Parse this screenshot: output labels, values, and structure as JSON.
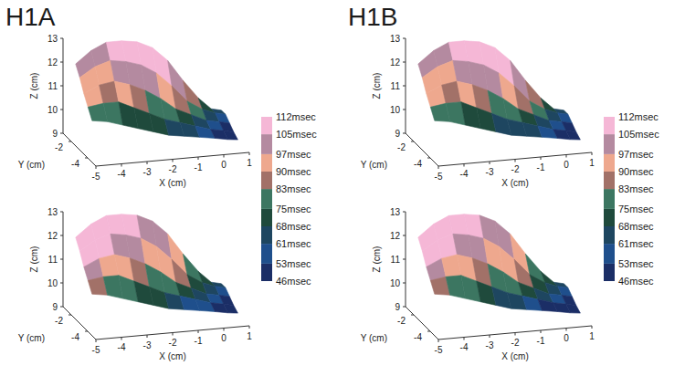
{
  "chart_data": [
    {
      "type": "surface3d",
      "title": "H1A",
      "xlabel": "X (cm)",
      "ylabel": "Y (cm)",
      "zlabel": "Z (cm)",
      "xlim": [
        -5,
        1
      ],
      "ylim": [
        -5,
        -1
      ],
      "zlim": [
        9,
        13
      ],
      "xticks": [
        -5,
        -4,
        -3,
        -2,
        -1,
        0,
        1
      ],
      "yticks": [
        -4,
        -2
      ],
      "zticks": [
        9,
        10,
        11,
        12,
        13
      ],
      "times": [
        [
          98,
          100,
          106,
          110,
          109,
          106,
          100,
          88,
          72,
          64
        ],
        [
          95,
          95,
          99,
          104,
          100,
          93,
          86,
          76,
          66,
          58
        ],
        [
          92,
          88,
          90,
          86,
          80,
          75,
          70,
          65,
          60,
          52
        ],
        [
          80,
          76,
          74,
          72,
          68,
          64,
          62,
          58,
          52,
          48
        ]
      ]
    },
    {
      "type": "surface3d",
      "xlabel": "X (cm)",
      "ylabel": "Y (cm)",
      "zlabel": "Z (cm)",
      "xlim": [
        -5,
        1
      ],
      "ylim": [
        -5,
        -1
      ],
      "zlim": [
        9,
        13
      ],
      "xticks": [
        -5,
        -4,
        -3,
        -2,
        -1,
        0,
        1
      ],
      "yticks": [
        -4,
        -2
      ],
      "zticks": [
        9,
        10,
        11,
        12,
        13
      ],
      "times": [
        [
          110,
          110,
          109,
          108,
          104,
          98,
          92,
          82,
          70,
          62
        ],
        [
          108,
          107,
          104,
          100,
          96,
          90,
          84,
          74,
          64,
          56
        ],
        [
          100,
          96,
          93,
          88,
          82,
          76,
          70,
          63,
          57,
          50
        ],
        [
          88,
          82,
          78,
          73,
          68,
          63,
          58,
          53,
          49,
          47
        ]
      ]
    },
    {
      "type": "surface3d",
      "title": "H1B",
      "xlabel": "X (cm)",
      "ylabel": "Y (cm)",
      "zlabel": "Z (cm)",
      "xlim": [
        -5,
        1
      ],
      "ylim": [
        -5,
        -1
      ],
      "zlim": [
        9,
        13
      ],
      "xticks": [
        -5,
        -4,
        -3,
        -2,
        -1,
        0,
        1
      ],
      "yticks": [
        -4,
        -2
      ],
      "zticks": [
        9,
        10,
        11,
        12,
        13
      ],
      "times": [
        [
          98,
          101,
          106,
          110,
          109,
          105,
          100,
          87,
          72,
          63
        ],
        [
          95,
          94,
          99,
          103,
          100,
          92,
          86,
          75,
          65,
          57
        ],
        [
          92,
          89,
          90,
          86,
          80,
          75,
          70,
          65,
          60,
          52
        ],
        [
          81,
          76,
          73,
          72,
          67,
          64,
          61,
          57,
          51,
          48
        ]
      ]
    },
    {
      "type": "surface3d",
      "xlabel": "X (cm)",
      "ylabel": "Y (cm)",
      "zlabel": "Z (cm)",
      "xlim": [
        -5,
        1
      ],
      "ylim": [
        -5,
        -1
      ],
      "zlim": [
        9,
        13
      ],
      "xticks": [
        -5,
        -4,
        -3,
        -2,
        -1,
        0,
        1
      ],
      "yticks": [
        -4,
        -2
      ],
      "zticks": [
        9,
        10,
        11,
        12,
        13
      ],
      "times": [
        [
          110,
          109,
          109,
          107,
          104,
          98,
          91,
          82,
          70,
          61
        ],
        [
          108,
          106,
          104,
          99,
          95,
          90,
          83,
          73,
          63,
          55
        ],
        [
          100,
          95,
          92,
          88,
          81,
          76,
          69,
          62,
          56,
          50
        ],
        [
          87,
          82,
          77,
          73,
          67,
          62,
          58,
          52,
          49,
          47
        ]
      ]
    }
  ],
  "surface": {
    "x": [
      -4.7,
      -4.1,
      -3.5,
      -2.9,
      -2.3,
      -1.7,
      -1.1,
      -0.5,
      0.1,
      0.6,
      1.0
    ],
    "y": [
      -1.6,
      -2.1,
      -2.6,
      -3.1,
      -3.6
    ],
    "z": [
      [
        12.1,
        12.6,
        12.9,
        12.9,
        12.8,
        12.5,
        11.9,
        11.0,
        10.2,
        9.7,
        9.6
      ],
      [
        11.7,
        12.1,
        12.3,
        12.2,
        12.0,
        11.6,
        11.0,
        10.3,
        9.9,
        9.7,
        9.6
      ],
      [
        11.2,
        11.5,
        11.6,
        11.4,
        11.1,
        10.7,
        10.2,
        9.9,
        9.6,
        9.5,
        9.4
      ],
      [
        10.8,
        10.9,
        10.9,
        10.6,
        10.3,
        10.0,
        9.8,
        9.6,
        9.4,
        9.3,
        9.2
      ],
      [
        10.4,
        10.3,
        10.1,
        9.9,
        9.7,
        9.5,
        9.4,
        9.3,
        9.2,
        9.1,
        9.05
      ]
    ]
  },
  "colorbar": {
    "ticks": [
      {
        "value": 46,
        "label": "46msec"
      },
      {
        "value": 53,
        "label": "53msec"
      },
      {
        "value": 61,
        "label": "61msec"
      },
      {
        "value": 68,
        "label": "68msec"
      },
      {
        "value": 75,
        "label": "75msec"
      },
      {
        "value": 83,
        "label": "83msec"
      },
      {
        "value": 90,
        "label": "90msec"
      },
      {
        "value": 97,
        "label": "97msec"
      },
      {
        "value": 105,
        "label": "105msec"
      },
      {
        "value": 112,
        "label": "112msec"
      }
    ],
    "colors": [
      "#1b2e66",
      "#1f4f8c",
      "#1e4660",
      "#1f4a3c",
      "#3c7661",
      "#a27168",
      "#eea88e",
      "#b48aa0",
      "#f5b7d6"
    ]
  }
}
